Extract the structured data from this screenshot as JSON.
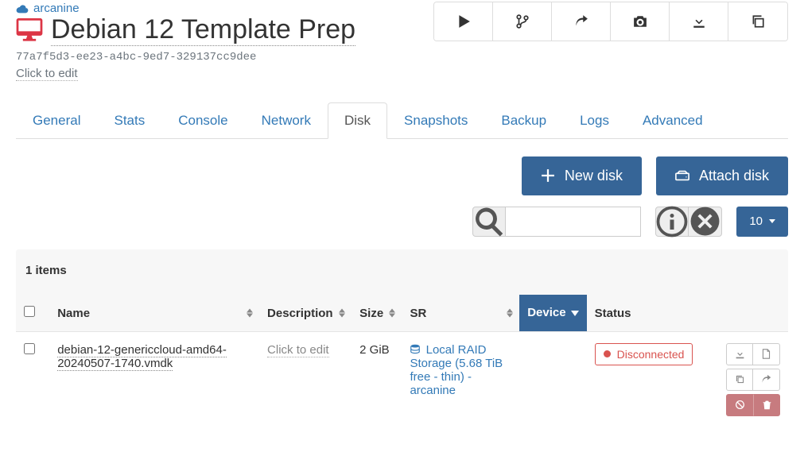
{
  "header": {
    "host": "arcanine",
    "title": "Debian 12 Template Prep",
    "uuid": "77a7f5d3-ee23-a4bc-9ed7-329137cc9dee",
    "description_placeholder": "Click to edit"
  },
  "tabs": [
    "General",
    "Stats",
    "Console",
    "Network",
    "Disk",
    "Snapshots",
    "Backup",
    "Logs",
    "Advanced"
  ],
  "active_tab": "Disk",
  "buttons": {
    "new_disk": "New disk",
    "attach_disk": "Attach disk"
  },
  "toolbar": {
    "page_size": "10"
  },
  "table": {
    "items_label": "1 items",
    "columns": {
      "name": "Name",
      "description": "Description",
      "size": "Size",
      "sr": "SR",
      "device": "Device",
      "status": "Status"
    },
    "sorted_column": "device",
    "rows": [
      {
        "name": "debian-12-genericcloud-amd64-20240507-1740.vmdk",
        "description": "Click to edit",
        "size": "2 GiB",
        "sr": "Local RAID Storage (5.68 TiB free - thin) - arcanine",
        "device": "",
        "status": "Disconnected"
      }
    ]
  },
  "colors": {
    "primary": "#366597",
    "link": "#337ab7",
    "danger": "#d9534f",
    "vm_icon": "#dc3545",
    "muted": "#6c757d"
  }
}
